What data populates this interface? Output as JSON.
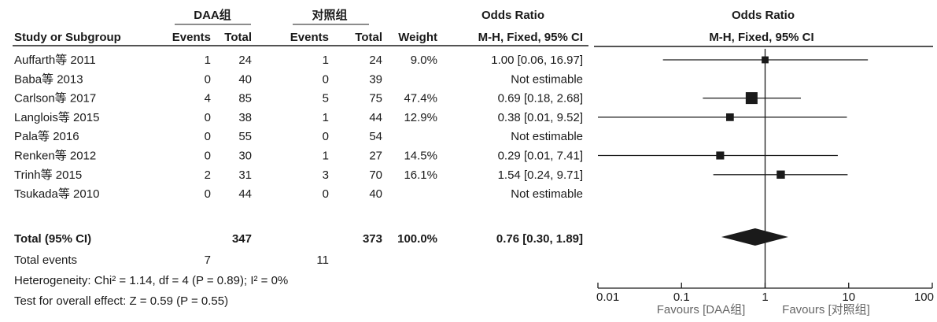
{
  "chart_data": {
    "type": "forest",
    "header": {
      "group1": "DAA组",
      "group2": "对照组",
      "or_left_title": "Odds Ratio",
      "or_left_method": "M-H, Fixed, 95% CI",
      "or_right_title": "Odds Ratio",
      "or_right_method": "M-H, Fixed, 95% CI",
      "study": "Study or Subgroup",
      "events": "Events",
      "total": "Total",
      "weight": "Weight"
    },
    "studies": [
      {
        "name": "Auffarth等 2011",
        "e1": "1",
        "n1": "24",
        "e2": "1",
        "n2": "24",
        "weight": "9.0%",
        "ci_text": "1.00 [0.06, 16.97]",
        "or": 1.0,
        "lo": 0.06,
        "hi": 16.97,
        "w": 9.0
      },
      {
        "name": "Baba等 2013",
        "e1": "0",
        "n1": "40",
        "e2": "0",
        "n2": "39",
        "weight": "",
        "ci_text": "Not estimable",
        "or": null,
        "lo": null,
        "hi": null,
        "w": 0
      },
      {
        "name": "Carlson等 2017",
        "e1": "4",
        "n1": "85",
        "e2": "5",
        "n2": "75",
        "weight": "47.4%",
        "ci_text": "0.69 [0.18, 2.68]",
        "or": 0.69,
        "lo": 0.18,
        "hi": 2.68,
        "w": 47.4
      },
      {
        "name": "Langlois等 2015",
        "e1": "0",
        "n1": "38",
        "e2": "1",
        "n2": "44",
        "weight": "12.9%",
        "ci_text": "0.38 [0.01, 9.52]",
        "or": 0.38,
        "lo": 0.01,
        "hi": 9.52,
        "w": 12.9
      },
      {
        "name": "Pala等 2016",
        "e1": "0",
        "n1": "55",
        "e2": "0",
        "n2": "54",
        "weight": "",
        "ci_text": "Not estimable",
        "or": null,
        "lo": null,
        "hi": null,
        "w": 0
      },
      {
        "name": "Renken等 2012",
        "e1": "0",
        "n1": "30",
        "e2": "1",
        "n2": "27",
        "weight": "14.5%",
        "ci_text": "0.29 [0.01, 7.41]",
        "or": 0.29,
        "lo": 0.01,
        "hi": 7.41,
        "w": 14.5
      },
      {
        "name": "Trinh等 2015",
        "e1": "2",
        "n1": "31",
        "e2": "3",
        "n2": "70",
        "weight": "16.1%",
        "ci_text": "1.54 [0.24, 9.71]",
        "or": 1.54,
        "lo": 0.24,
        "hi": 9.71,
        "w": 16.1
      },
      {
        "name": "Tsukada等 2010",
        "e1": "0",
        "n1": "44",
        "e2": "0",
        "n2": "40",
        "weight": "",
        "ci_text": "Not estimable",
        "or": null,
        "lo": null,
        "hi": null,
        "w": 0
      }
    ],
    "total": {
      "name": "Total (95% CI)",
      "n1": "347",
      "n2": "373",
      "weight": "100.0%",
      "ci_text": "0.76 [0.30, 1.89]",
      "or": 0.76,
      "lo": 0.3,
      "hi": 1.89
    },
    "total_events": {
      "label": "Total events",
      "e1": "7",
      "e2": "11"
    },
    "heterogeneity": "Heterogeneity: Chi² = 1.14, df = 4 (P = 0.89); I² = 0%",
    "overall_effect": "Test for overall effect: Z = 0.59 (P = 0.55)",
    "axis": {
      "scale": "log",
      "range": [
        0.01,
        100
      ],
      "ticks": [
        0.01,
        0.1,
        1,
        10,
        100
      ],
      "tick_labels": [
        "0.01",
        "0.1",
        "1",
        "10",
        "100"
      ],
      "null_value": 1
    },
    "favours_left": "Favours [DAA组]",
    "favours_right": "Favours [对照组]"
  }
}
